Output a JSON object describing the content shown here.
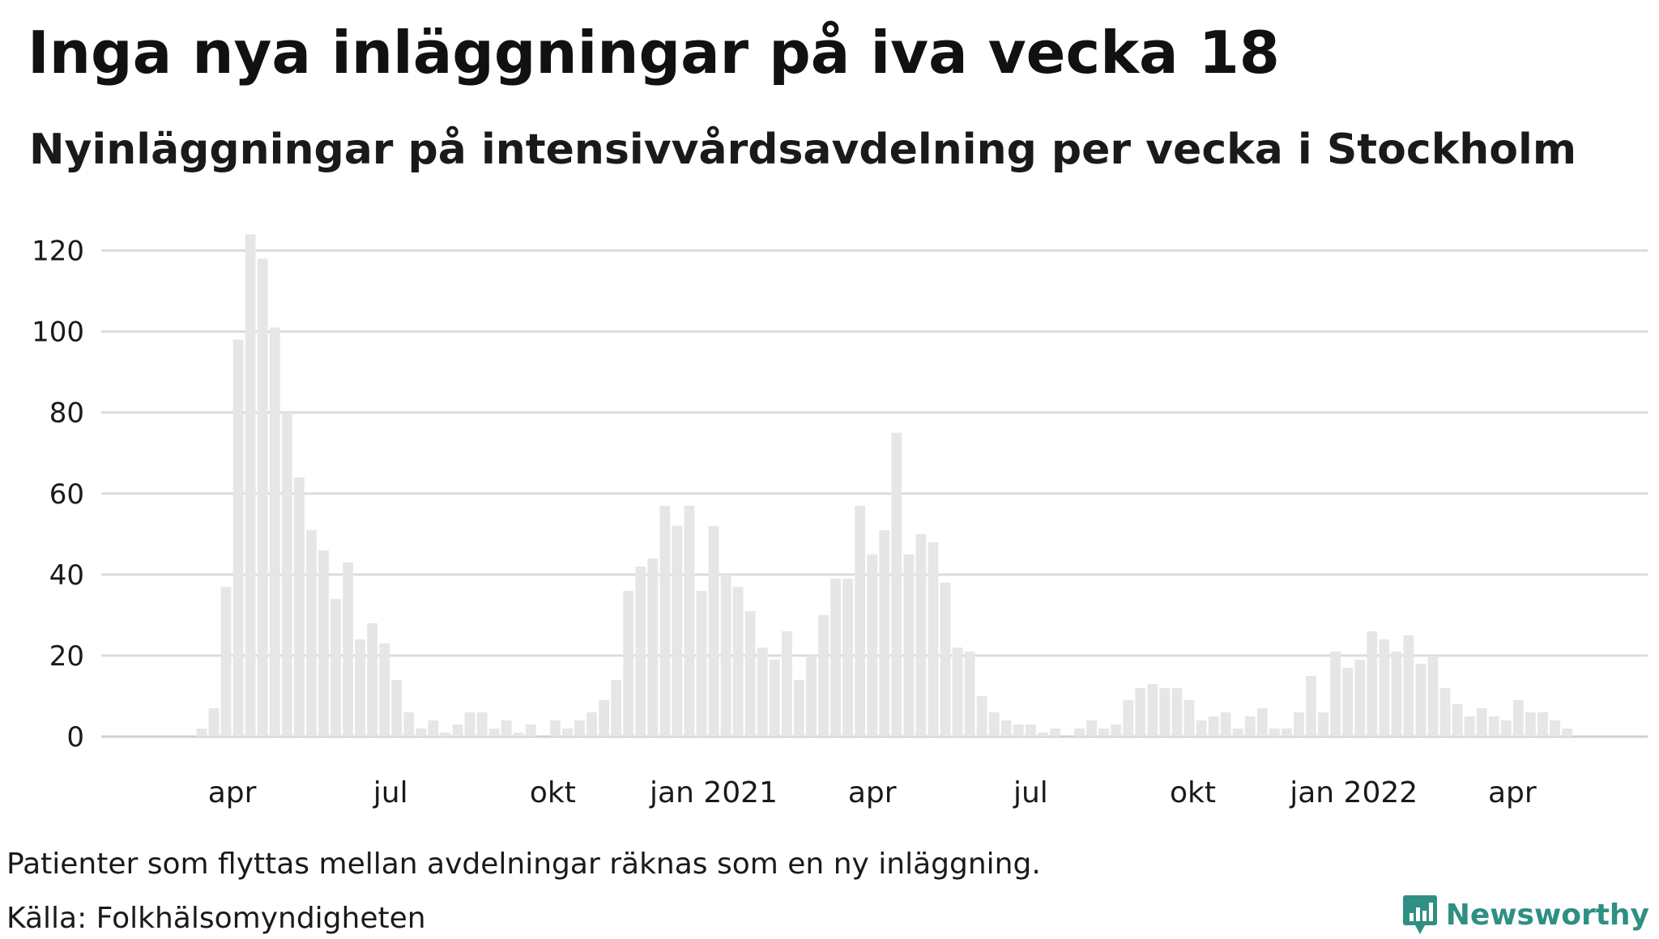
{
  "title": "Inga nya inläggningar på iva vecka 18",
  "subtitle": "Nyinläggningar på intensivvårdsavdelning per vecka i Stockholm",
  "note": "Patienter som flyttas mellan avdelningar räknas som en ny inläggning.",
  "source": "Källa: Folkhälsomyndigheten",
  "brand": {
    "name": "Newsworthy",
    "color": "#2f8f83",
    "icon": "newsworthy-chart-logo-icon"
  },
  "colors": {
    "bar": "#e6e6e6",
    "grid": "#dcdcdc",
    "text": "#1a1a1a"
  },
  "chart_data": {
    "type": "bar",
    "title": "Inga nya inläggningar på iva vecka 18",
    "subtitle": "Nyinläggningar på intensivvårdsavdelning per vecka i Stockholm",
    "xlabel": "",
    "ylabel": "",
    "ylim": [
      0,
      120
    ],
    "y_ticks": [
      0,
      20,
      40,
      60,
      80,
      100,
      120
    ],
    "grid": true,
    "legend": "none",
    "x_ticks": [
      {
        "label": "apr",
        "week_index": 3.5
      },
      {
        "label": "jul",
        "week_index": 16.5
      },
      {
        "label": "okt",
        "week_index": 29.8
      },
      {
        "label": "jan 2021",
        "week_index": 43
      },
      {
        "label": "apr",
        "week_index": 56
      },
      {
        "label": "jul",
        "week_index": 69
      },
      {
        "label": "okt",
        "week_index": 82.3
      },
      {
        "label": "jan 2022",
        "week_index": 95.5
      },
      {
        "label": "apr",
        "week_index": 108.5
      }
    ],
    "values": [
      0,
      2,
      7,
      37,
      98,
      124,
      118,
      101,
      80,
      64,
      51,
      46,
      34,
      43,
      24,
      28,
      23,
      14,
      6,
      2,
      4,
      1,
      3,
      6,
      6,
      2,
      4,
      1,
      3,
      0,
      4,
      2,
      4,
      6,
      9,
      14,
      36,
      42,
      44,
      57,
      52,
      57,
      36,
      52,
      40,
      37,
      31,
      22,
      19,
      26,
      14,
      20,
      30,
      39,
      39,
      57,
      45,
      51,
      75,
      45,
      50,
      48,
      38,
      22,
      21,
      10,
      6,
      4,
      3,
      3,
      1,
      2,
      0,
      2,
      4,
      2,
      3,
      9,
      12,
      13,
      12,
      12,
      9,
      4,
      5,
      6,
      2,
      5,
      7,
      2,
      2,
      6,
      15,
      6,
      21,
      17,
      19,
      26,
      24,
      21,
      25,
      18,
      20,
      12,
      8,
      5,
      7,
      5,
      4,
      9,
      6,
      6,
      4,
      2,
      0,
      0,
      0
    ]
  }
}
